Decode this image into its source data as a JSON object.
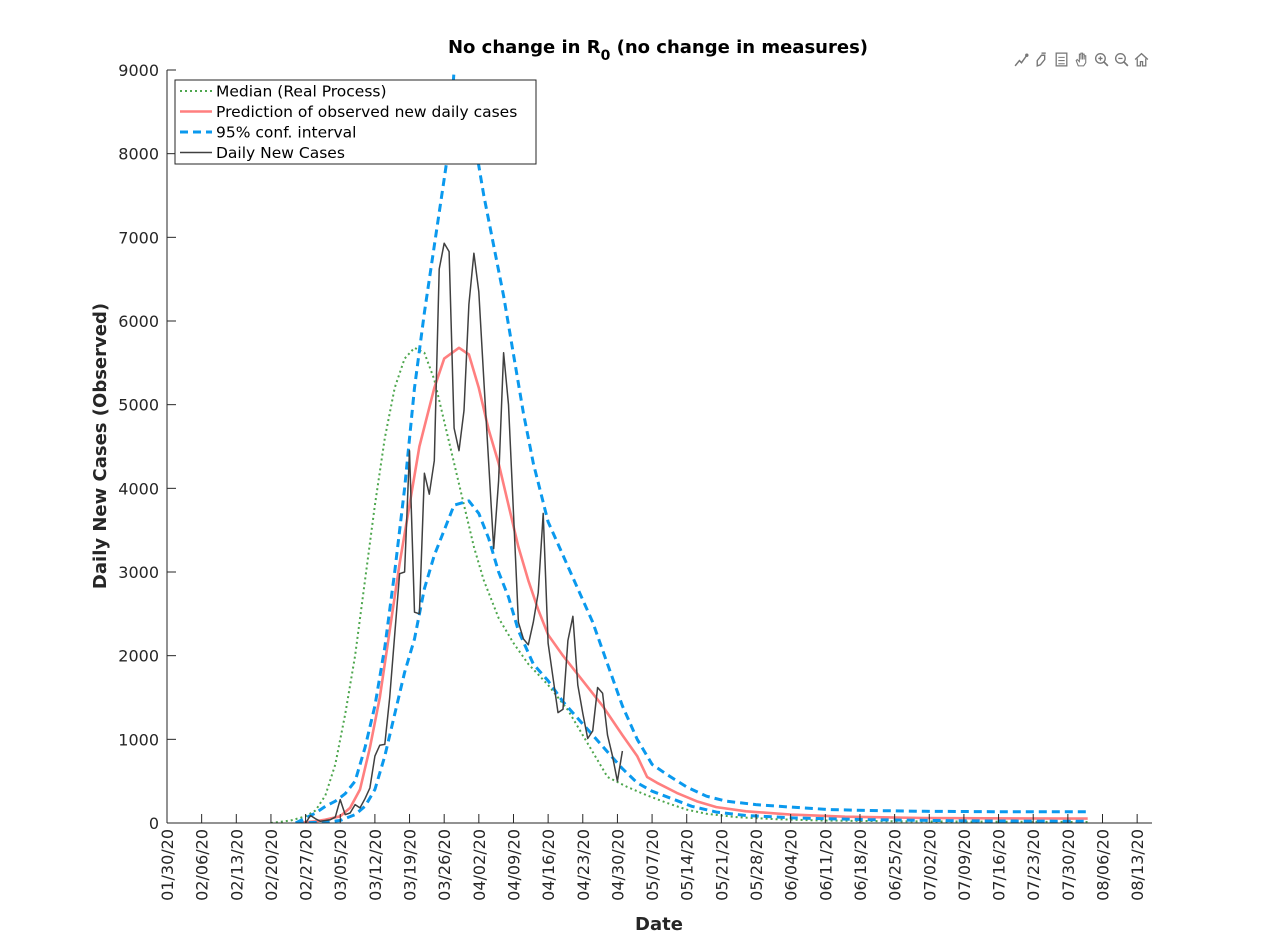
{
  "chart_data": {
    "type": "line",
    "title_main": "No change in R",
    "title_sub": "0",
    "title_rest": " (no change in measures)",
    "xlabel": "Date",
    "ylabel": "Daily New Cases (Observed)",
    "ylim": [
      0,
      9000
    ],
    "yticks": [
      0,
      1000,
      2000,
      3000,
      4000,
      5000,
      6000,
      7000,
      8000,
      9000
    ],
    "xlim": [
      "01/30/20",
      "08/16/20"
    ],
    "xtick_labels": [
      "01/30/20",
      "02/06/20",
      "02/13/20",
      "02/20/20",
      "02/27/20",
      "03/05/20",
      "03/12/20",
      "03/19/20",
      "03/26/20",
      "04/02/20",
      "04/09/20",
      "04/16/20",
      "04/23/20",
      "04/30/20",
      "05/07/20",
      "05/14/20",
      "05/21/20",
      "05/28/20",
      "06/04/20",
      "06/11/20",
      "06/18/20",
      "06/25/20",
      "07/02/20",
      "07/09/20",
      "07/16/20",
      "07/23/20",
      "07/30/20",
      "08/06/20",
      "08/13/20"
    ],
    "grid": false,
    "legend_position": "top-left",
    "series": [
      {
        "name": "Median (Real Process)",
        "style": "dotted",
        "color": "#4da64d",
        "points": [
          [
            "02/20/20",
            0
          ],
          [
            "02/24/20",
            30
          ],
          [
            "02/27/20",
            80
          ],
          [
            "02/29/20",
            150
          ],
          [
            "03/02/20",
            330
          ],
          [
            "03/04/20",
            700
          ],
          [
            "03/06/20",
            1300
          ],
          [
            "03/08/20",
            2000
          ],
          [
            "03/10/20",
            2900
          ],
          [
            "03/12/20",
            3800
          ],
          [
            "03/14/20",
            4600
          ],
          [
            "03/16/20",
            5200
          ],
          [
            "03/18/20",
            5550
          ],
          [
            "03/20/20",
            5680
          ],
          [
            "03/22/20",
            5620
          ],
          [
            "03/24/20",
            5300
          ],
          [
            "03/26/20",
            4800
          ],
          [
            "03/28/20",
            4300
          ],
          [
            "03/30/20",
            3800
          ],
          [
            "04/01/20",
            3300
          ],
          [
            "04/03/20",
            2900
          ],
          [
            "04/06/20",
            2450
          ],
          [
            "04/09/20",
            2150
          ],
          [
            "04/12/20",
            1900
          ],
          [
            "04/16/20",
            1650
          ],
          [
            "04/20/20",
            1350
          ],
          [
            "04/24/20",
            950
          ],
          [
            "04/28/20",
            550
          ],
          [
            "05/02/20",
            430
          ],
          [
            "05/06/20",
            330
          ],
          [
            "05/10/20",
            240
          ],
          [
            "05/14/20",
            160
          ],
          [
            "05/18/20",
            110
          ],
          [
            "05/24/20",
            70
          ],
          [
            "06/01/20",
            45
          ],
          [
            "06/10/20",
            30
          ],
          [
            "06/25/20",
            20
          ],
          [
            "07/15/20",
            15
          ],
          [
            "08/03/20",
            12
          ]
        ]
      },
      {
        "name": "Prediction of observed new daily cases",
        "style": "solid",
        "color": "#ff7f7f",
        "points": [
          [
            "02/25/20",
            0
          ],
          [
            "02/29/20",
            20
          ],
          [
            "03/02/20",
            40
          ],
          [
            "03/05/20",
            80
          ],
          [
            "03/07/20",
            180
          ],
          [
            "03/09/20",
            400
          ],
          [
            "03/11/20",
            900
          ],
          [
            "03/13/20",
            1500
          ],
          [
            "03/15/20",
            2300
          ],
          [
            "03/17/20",
            3100
          ],
          [
            "03/19/20",
            3800
          ],
          [
            "03/21/20",
            4500
          ],
          [
            "03/24/20",
            5200
          ],
          [
            "03/26/20",
            5550
          ],
          [
            "03/29/20",
            5680
          ],
          [
            "03/31/20",
            5600
          ],
          [
            "04/02/20",
            5200
          ],
          [
            "04/04/20",
            4700
          ],
          [
            "04/06/20",
            4300
          ],
          [
            "04/08/20",
            3800
          ],
          [
            "04/10/20",
            3300
          ],
          [
            "04/12/20",
            2900
          ],
          [
            "04/14/20",
            2550
          ],
          [
            "04/16/20",
            2250
          ],
          [
            "04/19/20",
            2000
          ],
          [
            "04/23/20",
            1700
          ],
          [
            "04/27/20",
            1400
          ],
          [
            "05/01/20",
            1050
          ],
          [
            "05/04/20",
            800
          ],
          [
            "05/06/20",
            550
          ],
          [
            "05/08/20",
            480
          ],
          [
            "05/12/20",
            360
          ],
          [
            "05/16/20",
            260
          ],
          [
            "05/20/20",
            190
          ],
          [
            "05/26/20",
            140
          ],
          [
            "06/04/20",
            100
          ],
          [
            "06/15/20",
            75
          ],
          [
            "07/01/20",
            60
          ],
          [
            "07/20/20",
            55
          ],
          [
            "08/03/20",
            52
          ]
        ]
      },
      {
        "name": "95% conf. interval",
        "style": "dashed",
        "color": "#0a99ee",
        "points": [
          [
            "02/25/20",
            0
          ],
          [
            "02/29/20",
            120
          ],
          [
            "03/02/20",
            200
          ],
          [
            "03/04/20",
            260
          ],
          [
            "03/06/20",
            350
          ],
          [
            "03/08/20",
            500
          ],
          [
            "03/10/20",
            900
          ],
          [
            "03/12/20",
            1400
          ],
          [
            "03/14/20",
            2100
          ],
          [
            "03/16/20",
            3000
          ],
          [
            "03/18/20",
            4000
          ],
          [
            "03/20/20",
            5200
          ],
          [
            "03/22/20",
            6100
          ],
          [
            "03/24/20",
            6900
          ],
          [
            "03/26/20",
            7700
          ],
          [
            "03/27/20",
            8100
          ],
          [
            "03/28/20",
            9000
          ]
        ]
      },
      {
        "name": "",
        "style": "dashed",
        "color": "#0a99ee",
        "points": [
          [
            "04/01/20",
            8200
          ],
          [
            "04/03/20",
            7500
          ],
          [
            "04/05/20",
            6900
          ],
          [
            "04/07/20",
            6300
          ],
          [
            "04/09/20",
            5600
          ],
          [
            "04/11/20",
            4900
          ],
          [
            "04/13/20",
            4300
          ],
          [
            "04/16/20",
            3600
          ],
          [
            "04/19/20",
            3200
          ],
          [
            "04/22/20",
            2800
          ],
          [
            "04/25/20",
            2400
          ],
          [
            "04/28/20",
            1900
          ],
          [
            "05/01/20",
            1400
          ],
          [
            "05/04/20",
            1000
          ],
          [
            "05/07/20",
            700
          ],
          [
            "05/10/20",
            580
          ],
          [
            "05/14/20",
            430
          ],
          [
            "05/18/20",
            320
          ],
          [
            "05/22/20",
            260
          ],
          [
            "05/28/20",
            220
          ],
          [
            "06/04/20",
            190
          ],
          [
            "06/12/20",
            160
          ],
          [
            "06/20/20",
            150
          ],
          [
            "07/01/20",
            140
          ],
          [
            "07/15/20",
            135
          ],
          [
            "08/03/20",
            135
          ]
        ]
      },
      {
        "name": "",
        "style": "dashed",
        "color": "#0a99ee",
        "points": [
          [
            "02/25/20",
            0
          ],
          [
            "03/02/20",
            10
          ],
          [
            "03/05/20",
            30
          ],
          [
            "03/08/20",
            100
          ],
          [
            "03/10/20",
            200
          ],
          [
            "03/12/20",
            400
          ],
          [
            "03/14/20",
            800
          ],
          [
            "03/16/20",
            1300
          ],
          [
            "03/18/20",
            1800
          ],
          [
            "03/20/20",
            2200
          ],
          [
            "03/22/20",
            2800
          ],
          [
            "03/24/20",
            3200
          ],
          [
            "03/26/20",
            3500
          ],
          [
            "03/28/20",
            3800
          ],
          [
            "03/31/20",
            3850
          ],
          [
            "04/02/20",
            3700
          ],
          [
            "04/04/20",
            3400
          ],
          [
            "04/06/20",
            3000
          ],
          [
            "04/08/20",
            2700
          ],
          [
            "04/10/20",
            2300
          ],
          [
            "04/13/20",
            1900
          ],
          [
            "04/16/20",
            1700
          ],
          [
            "04/19/20",
            1450
          ],
          [
            "04/22/20",
            1250
          ],
          [
            "04/25/20",
            1050
          ],
          [
            "04/28/20",
            850
          ],
          [
            "05/01/20",
            650
          ],
          [
            "05/04/20",
            480
          ],
          [
            "05/07/20",
            380
          ],
          [
            "05/11/20",
            290
          ],
          [
            "05/15/20",
            200
          ],
          [
            "05/20/20",
            130
          ],
          [
            "05/26/20",
            90
          ],
          [
            "06/05/20",
            60
          ],
          [
            "06/20/20",
            40
          ],
          [
            "07/10/20",
            25
          ],
          [
            "08/03/20",
            20
          ]
        ]
      },
      {
        "name": "Daily New Cases",
        "style": "solid",
        "color": "#404040",
        "points": [
          [
            "02/27/20",
            0
          ],
          [
            "02/28/20",
            90
          ],
          [
            "02/29/20",
            50
          ],
          [
            "03/01/20",
            20
          ],
          [
            "03/02/20",
            30
          ],
          [
            "03/03/20",
            40
          ],
          [
            "03/04/20",
            70
          ],
          [
            "03/05/20",
            280
          ],
          [
            "03/06/20",
            100
          ],
          [
            "03/07/20",
            120
          ],
          [
            "03/08/20",
            220
          ],
          [
            "03/09/20",
            180
          ],
          [
            "03/10/20",
            290
          ],
          [
            "03/11/20",
            420
          ],
          [
            "03/12/20",
            800
          ],
          [
            "03/13/20",
            930
          ],
          [
            "03/14/20",
            940
          ],
          [
            "03/15/20",
            1500
          ],
          [
            "03/16/20",
            2250
          ],
          [
            "03/17/20",
            2980
          ],
          [
            "03/18/20",
            3000
          ],
          [
            "03/19/20",
            4450
          ],
          [
            "03/20/20",
            2520
          ],
          [
            "03/21/20",
            2500
          ],
          [
            "03/22/20",
            4180
          ],
          [
            "03/23/20",
            3930
          ],
          [
            "03/24/20",
            4330
          ],
          [
            "03/25/20",
            6620
          ],
          [
            "03/26/20",
            6930
          ],
          [
            "03/27/20",
            6830
          ],
          [
            "03/28/20",
            4720
          ],
          [
            "03/29/20",
            4450
          ],
          [
            "03/30/20",
            4930
          ],
          [
            "03/31/20",
            6200
          ],
          [
            "04/01/20",
            6810
          ],
          [
            "04/02/20",
            6350
          ],
          [
            "04/03/20",
            5300
          ],
          [
            "04/04/20",
            4300
          ],
          [
            "04/05/20",
            3280
          ],
          [
            "04/06/20",
            4090
          ],
          [
            "04/07/20",
            5620
          ],
          [
            "04/08/20",
            5000
          ],
          [
            "04/09/20",
            3700
          ],
          [
            "04/10/20",
            2400
          ],
          [
            "04/11/20",
            2200
          ],
          [
            "04/12/20",
            2130
          ],
          [
            "04/13/20",
            2400
          ],
          [
            "04/14/20",
            2750
          ],
          [
            "04/15/20",
            3700
          ],
          [
            "04/16/20",
            2150
          ],
          [
            "04/17/20",
            1730
          ],
          [
            "04/18/20",
            1320
          ],
          [
            "04/19/20",
            1360
          ],
          [
            "04/20/20",
            2180
          ],
          [
            "04/21/20",
            2470
          ],
          [
            "04/22/20",
            1650
          ],
          [
            "04/23/20",
            1310
          ],
          [
            "04/24/20",
            1010
          ],
          [
            "04/25/20",
            1100
          ],
          [
            "04/26/20",
            1620
          ],
          [
            "04/27/20",
            1550
          ],
          [
            "04/28/20",
            1050
          ],
          [
            "04/29/20",
            800
          ],
          [
            "04/30/20",
            500
          ],
          [
            "05/01/20",
            860
          ]
        ]
      }
    ]
  },
  "toolbar": {
    "icons": [
      "data-cursor-icon",
      "brush-icon",
      "legend-icon",
      "pan-icon",
      "zoom-in-icon",
      "zoom-out-icon",
      "home-icon"
    ]
  }
}
